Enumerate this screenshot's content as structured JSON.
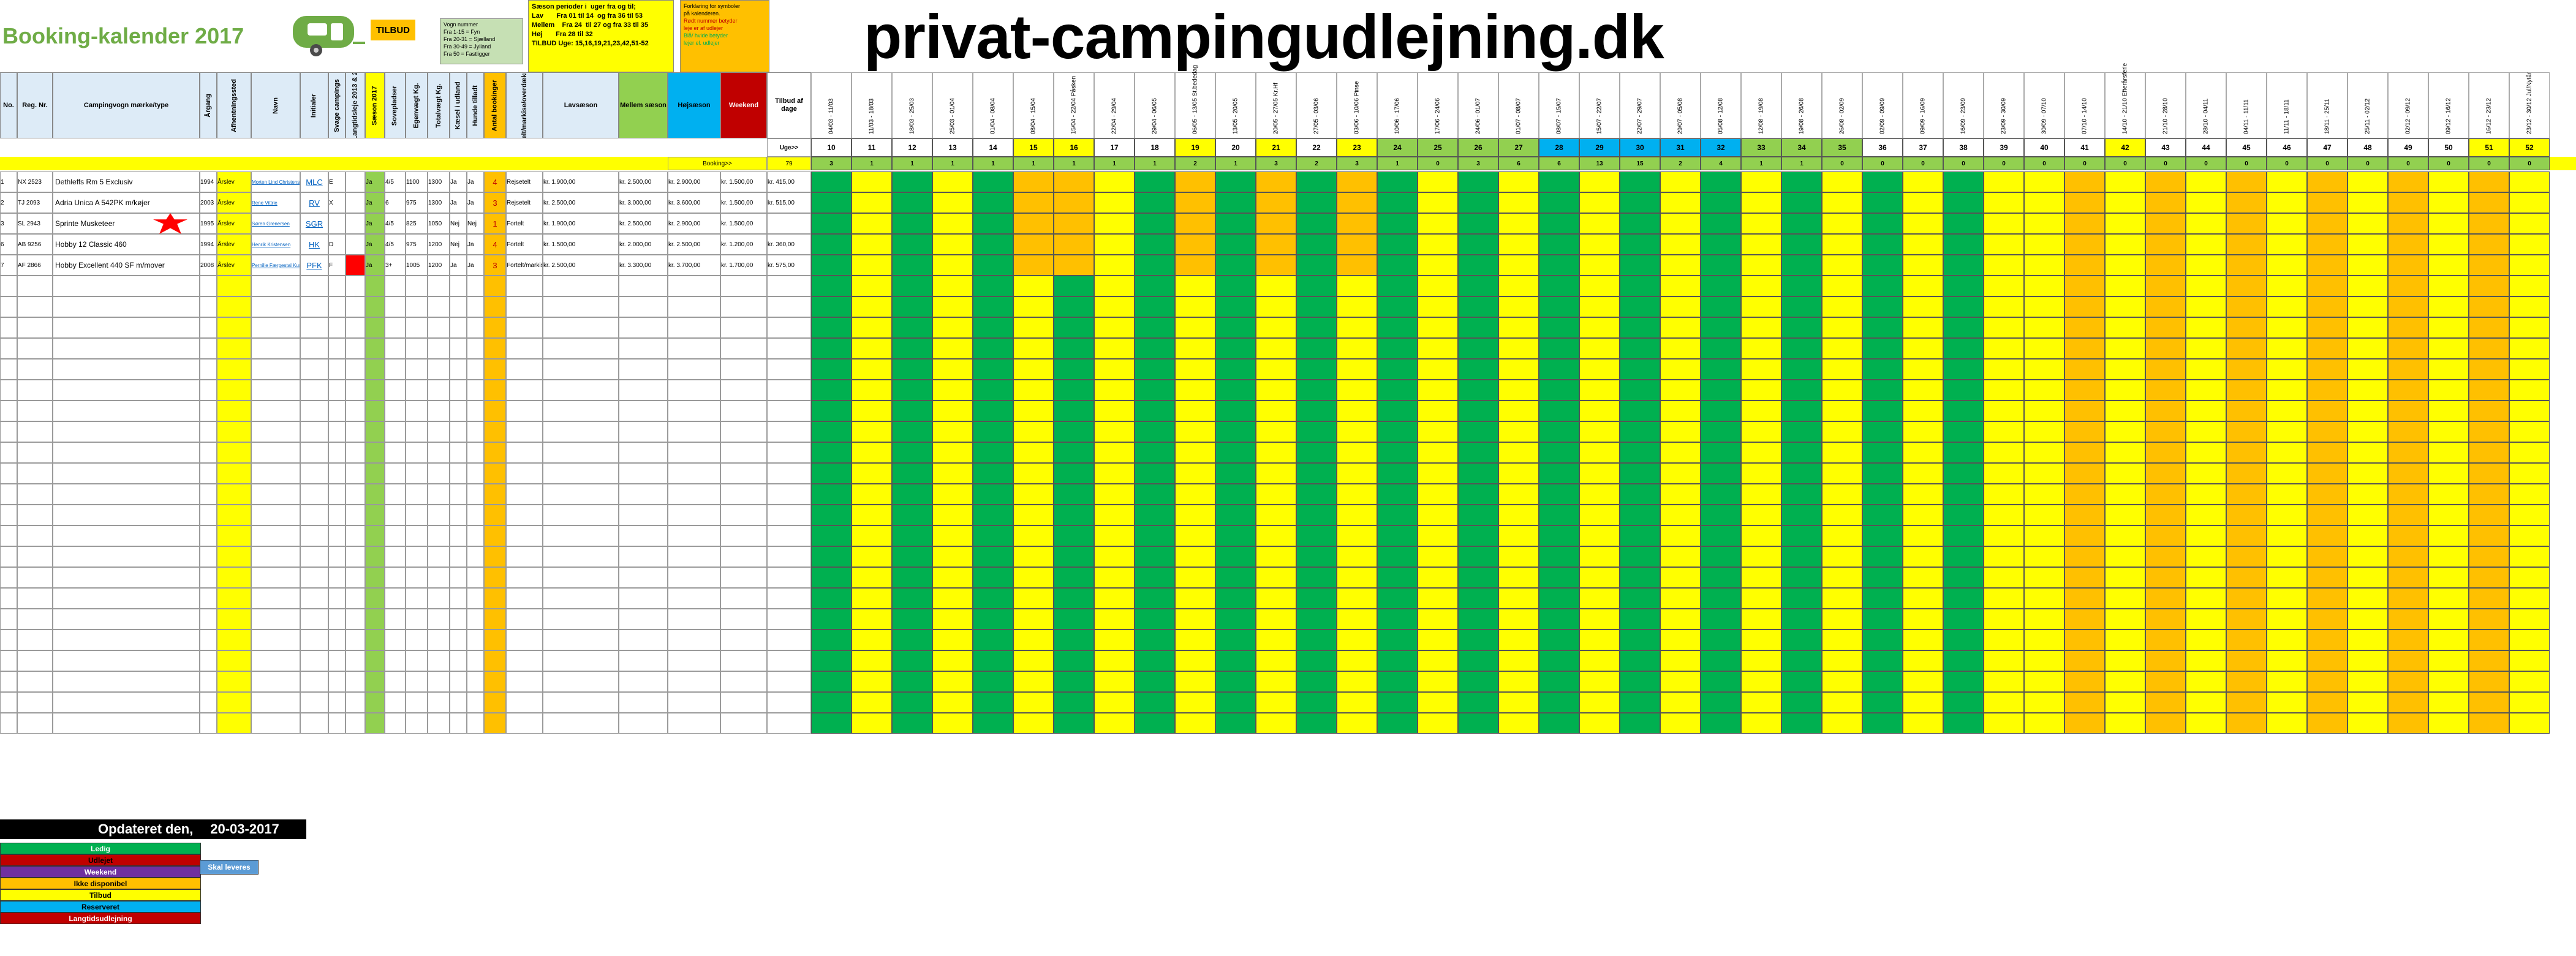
{
  "title": "Booking-kalender 2017",
  "site_title": "privat-campingudlejning.dk",
  "tilbud": "TILBUD",
  "price_note": [
    "Vogn nummer",
    "Fra 1-15 = Fyn",
    "Fra 20-31 = Sjælland",
    "Fra 30-49 = Jylland",
    "Fra 50 = Fastligger"
  ],
  "season_box": "Sæson perioder i  uger fra og til;\nLav       Fra 01 til 14  og fra 36 til 53\nMellem    Fra 24  til 27 og fra 33 til 35\nHøj       Fra 28 til 32\nTILBUD Uge: 15,16,19,21,23,42,51-52",
  "symbol_box": [
    "Forklaring for symboler",
    "på kalenderen.",
    "Rødt nummer betyder",
    "leje er af udlejer",
    "Blå/ hvide betyder",
    "lejer el. udlejer"
  ],
  "columns": {
    "no": "No.",
    "reg": "Reg. Nr.",
    "camp": "Campingvogn mærke/type",
    "aargang": "Årgang",
    "afhentning": "Afhentningssted",
    "navn": "Navn",
    "initialer": "Initialer",
    "svage": "Svage campings",
    "langtid": "Langtidsleje 2013 & 2",
    "saeson": "Sæson 2017",
    "sovepladser": "Sovepladser",
    "egenvaegt": "Egenvægt Kg.",
    "totalvaegt": "Totalvægt Kg.",
    "kaesel": "Kæsel i udland",
    "hund": "Hunde tilladt",
    "antal": "Antal bookinger",
    "fortelt": "Fortelt/markise/overdækning",
    "lav": "Lavsæson",
    "mellem": "Mellem sæson",
    "hoj": "Højsæson",
    "weekend": "Weekend",
    "tilbud_dage": "Tilbud af dage"
  },
  "week_dates": [
    "04/03 - 11/03",
    "11/03 - 18/03",
    "18/03 - 25/03",
    "25/03 - 01/04",
    "01/04 - 08/04",
    "08/04 - 15/04",
    "15/04 - 22/04 Påsken",
    "22/04 - 29/04",
    "29/04 - 06/05",
    "06/05 - 13/05 St.bededag",
    "13/05 - 20/05",
    "20/05 - 27/05 Kr.Hf",
    "27/05 - 03/06",
    "03/06 - 10/06 Pinse",
    "10/06 - 17/06",
    "17/06 - 24/06",
    "24/06 - 01/07",
    "01/07 - 08/07",
    "08/07 - 15/07",
    "15/07 - 22/07",
    "22/07 - 29/07",
    "29/07 - 05/08",
    "05/08 - 12/08",
    "12/08 - 19/08",
    "19/08 - 26/08",
    "26/08 - 02/09",
    "02/09 - 09/09",
    "09/09 - 16/09",
    "16/09 - 23/09",
    "23/09 - 30/09",
    "30/09 - 07/10",
    "07/10 - 14/10",
    "14/10 - 21/10 Efterårsferie",
    "21/10 - 28/10",
    "28/10 - 04/11",
    "04/11 - 11/11",
    "11/11 - 18/11",
    "18/11 - 25/11",
    "25/11 - 02/12",
    "02/12 - 09/12",
    "09/12 - 16/12",
    "16/12 - 23/12",
    "23/12 - 30/12 Jul/Nytår"
  ],
  "week_numbers": [
    "10",
    "11",
    "12",
    "13",
    "14",
    "15",
    "16",
    "17",
    "18",
    "19",
    "20",
    "21",
    "22",
    "23",
    "24",
    "25",
    "26",
    "27",
    "28",
    "29",
    "30",
    "31",
    "32",
    "33",
    "34",
    "35",
    "36",
    "37",
    "38",
    "39",
    "40",
    "41",
    "42",
    "43",
    "44",
    "45",
    "46",
    "47",
    "48",
    "49",
    "50",
    "51",
    "52"
  ],
  "uge_label": "Uge>>",
  "booking_label": "Booking>>",
  "total_bookings": "79",
  "booking_counts": [
    "3",
    "1",
    "1",
    "1",
    "1",
    "1",
    "1",
    "1",
    "1",
    "2",
    "1",
    "3",
    "2",
    "3",
    "1",
    "0",
    "3",
    "6",
    "6",
    "13",
    "15",
    "2",
    "4",
    "1",
    "1",
    "0",
    "0",
    "0",
    "0",
    "0",
    "0",
    "0",
    "0",
    "0",
    "0",
    "0",
    "0",
    "0",
    "0",
    "0",
    "0",
    "0",
    "0"
  ],
  "groups": [
    {
      "rows": [
        {
          "no": "1",
          "reg": "NX 2523",
          "camp": "Dethleffs Rm 5 Exclusiv",
          "aar": "1994",
          "afh": "Årslev",
          "navn": "Morten Lind Christensen",
          "ini": "MLC",
          "sv": "E",
          "lt": "",
          "sa": "Ja",
          "sp": "4/5",
          "eg": "1100",
          "tv": "1300",
          "ka": "Ja",
          "hu": "Ja",
          "an": "4",
          "fo": "Rejsetelt",
          "lav": "kr. 1.900,00",
          "mel": "kr. 2.500,00",
          "hoj": "kr. 2.900,00",
          "we": "kr. 1.500,00",
          "td": "kr. 415,00",
          "ny": false
        },
        {
          "no": "2",
          "reg": "TJ 2093",
          "camp": "Adria Unica A 542PK m/køjer",
          "aar": "2003",
          "afh": "Årslev",
          "navn": "Rene Vittrie",
          "ini": "RV",
          "sv": "X",
          "lt": "",
          "sa": "Ja",
          "sp": "6",
          "eg": "975",
          "tv": "1300",
          "ka": "Ja",
          "hu": "Ja",
          "an": "3",
          "fo": "Rejsetelt",
          "lav": "kr. 2.500,00",
          "mel": "kr. 3.000,00",
          "hoj": "kr. 3.600,00",
          "we": "kr. 1.500,00",
          "td": "kr. 515,00",
          "ny": false
        },
        {
          "no": "3",
          "reg": "SL 2943",
          "camp": "Sprinte Musketeer",
          "aar": "1995",
          "afh": "Årslev",
          "navn": "Søren Grenersen",
          "ini": "SGR",
          "sv": "",
          "lt": "",
          "sa": "Ja",
          "sp": "4/5",
          "eg": "825",
          "tv": "1050",
          "ka": "Nej",
          "hu": "Nej",
          "an": "1",
          "fo": "Fortelt",
          "lav": "kr. 1.900,00",
          "mel": "kr. 2.500,00",
          "hoj": "kr. 2.900,00",
          "we": "kr. 1.500,00",
          "td": "",
          "ny": true
        },
        {
          "no": "6",
          "reg": "AB 9256",
          "camp": "Hobby 12 Classic 460",
          "aar": "1994",
          "afh": "Årslev",
          "navn": "Henrik Kristensen",
          "ini": "HK",
          "sv": "D",
          "lt": "",
          "sa": "Ja",
          "sp": "4/5",
          "eg": "975",
          "tv": "1200",
          "ka": "Nej",
          "hu": "Ja",
          "an": "4",
          "fo": "Fortelt",
          "lav": "kr. 1.500,00",
          "mel": "kr. 2.000,00",
          "hoj": "kr. 2.500,00",
          "we": "kr. 1.200,00",
          "td": "kr. 360,00",
          "ny": false
        },
        {
          "no": "7",
          "reg": "AF 2866",
          "camp": "Hobby  Excellent 440 SF m/mover",
          "aar": "2008",
          "afh": "Årslev",
          "navn": "Pernille Færgestal Kuske",
          "ini": "PFK",
          "sv": "F",
          "lt": "red",
          "sa": "Ja",
          "sp": "3+",
          "eg": "1005",
          "tv": "1200",
          "ka": "Ja",
          "hu": "Ja",
          "an": "3",
          "fo": "Fortelt/markise",
          "lav": "kr. 2.500,00",
          "mel": "kr. 3.300,00",
          "hoj": "kr. 3.700,00",
          "we": "kr. 1.700,00",
          "td": "kr. 575,00",
          "ny": false
        }
      ]
    }
  ],
  "footer": {
    "updated_label": "Opdateret den,",
    "updated_date": "20-03-2017"
  },
  "legend": [
    {
      "label": "Ledig",
      "color": "#00b050",
      "text": "#ffffff"
    },
    {
      "label": "Udlejet",
      "color": "#c00000",
      "text": "#000000"
    },
    {
      "label": "Weekend",
      "color": "#7030a0",
      "text": "#ffffff"
    },
    {
      "label": "Ikke disponibel",
      "color": "#ffc000",
      "text": "#000000"
    },
    {
      "label": "Tilbud",
      "color": "#ffff00",
      "text": "#000000"
    },
    {
      "label": "Reserveret",
      "color": "#00b0f0",
      "text": "#000000"
    },
    {
      "label": "Langtidsudlejning",
      "color": "#c00000",
      "text": "#ffffff"
    }
  ],
  "skal_leveres": "Skal leveres",
  "colors": {
    "green": "#00b050",
    "yellow": "#ffff00",
    "orange": "#ffc000",
    "red": "#ff0000",
    "purple": "#7030a0",
    "blue": "#00b0f0",
    "header_blue": "#ddebf7",
    "gray": "#bfbfbf"
  }
}
